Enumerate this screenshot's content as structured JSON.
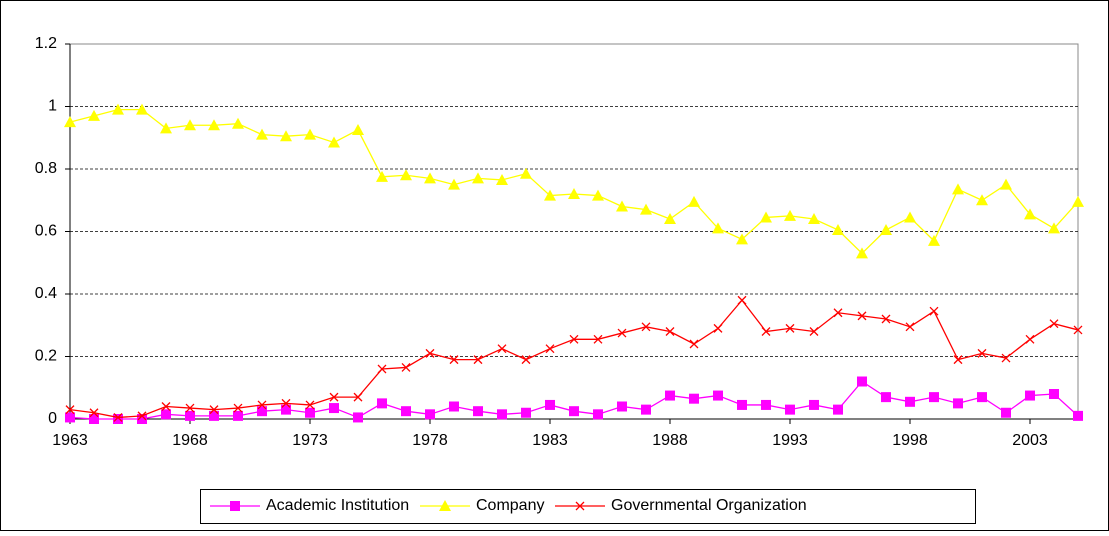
{
  "chart_data": {
    "type": "line",
    "x": [
      1963,
      1964,
      1965,
      1966,
      1967,
      1968,
      1969,
      1970,
      1971,
      1972,
      1973,
      1974,
      1975,
      1976,
      1977,
      1978,
      1979,
      1980,
      1981,
      1982,
      1983,
      1984,
      1985,
      1986,
      1987,
      1988,
      1989,
      1990,
      1991,
      1992,
      1993,
      1994,
      1995,
      1996,
      1997,
      1998,
      1999,
      2000,
      2001,
      2002,
      2003,
      2004,
      2005
    ],
    "xlim": [
      1963,
      2005
    ],
    "xticks": [
      1963,
      1968,
      1973,
      1978,
      1983,
      1988,
      1993,
      1998,
      2003
    ],
    "ylim": [
      0,
      1.2
    ],
    "yticks": [
      0,
      0.2,
      0.4,
      0.6,
      0.8,
      1,
      1.2
    ],
    "grid": true,
    "legend": "bottom",
    "series": [
      {
        "name": "Academic Institution",
        "color": "#ff00ff",
        "marker": "square",
        "values": [
          0.005,
          0,
          0,
          0,
          0.015,
          0.01,
          0.01,
          0.01,
          0.025,
          0.03,
          0.02,
          0.035,
          0.005,
          0.05,
          0.025,
          0.015,
          0.04,
          0.025,
          0.015,
          0.02,
          0.045,
          0.025,
          0.015,
          0.04,
          0.03,
          0.075,
          0.065,
          0.075,
          0.045,
          0.045,
          0.03,
          0.045,
          0.03,
          0.12,
          0.07,
          0.055,
          0.07,
          0.05,
          0.07,
          0.02,
          0.075,
          0.08,
          0.01
        ]
      },
      {
        "name": "Company",
        "color": "#ffff00",
        "marker": "triangle",
        "values": [
          0.95,
          0.97,
          0.99,
          0.99,
          0.93,
          0.94,
          0.94,
          0.945,
          0.91,
          0.905,
          0.91,
          0.885,
          0.925,
          0.775,
          0.78,
          0.77,
          0.75,
          0.77,
          0.765,
          0.785,
          0.715,
          0.72,
          0.715,
          0.68,
          0.67,
          0.64,
          0.695,
          0.61,
          0.575,
          0.645,
          0.65,
          0.64,
          0.605,
          0.53,
          0.605,
          0.645,
          0.57,
          0.735,
          0.7,
          0.75,
          0.655,
          0.61,
          0.695
        ]
      },
      {
        "name": "Governmental Organization",
        "color": "#ff0000",
        "marker": "x",
        "values": [
          0.03,
          0.02,
          0.005,
          0.01,
          0.04,
          0.035,
          0.03,
          0.035,
          0.045,
          0.05,
          0.045,
          0.07,
          0.07,
          0.16,
          0.165,
          0.21,
          0.19,
          0.19,
          0.225,
          0.19,
          0.225,
          0.255,
          0.255,
          0.275,
          0.295,
          0.28,
          0.24,
          0.29,
          0.38,
          0.28,
          0.29,
          0.28,
          0.34,
          0.33,
          0.32,
          0.295,
          0.345,
          0.19,
          0.21,
          0.195,
          0.255,
          0.305,
          0.285
        ]
      }
    ]
  }
}
